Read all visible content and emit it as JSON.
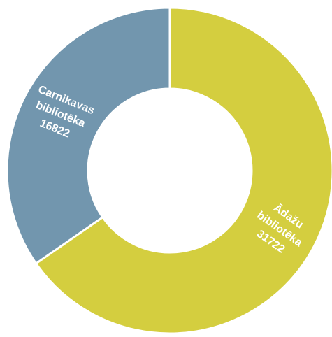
{
  "chart_data": {
    "type": "pie",
    "style": "donut",
    "title": "",
    "slices": [
      {
        "label_lines": [
          "Ādažu",
          "bibliotēka",
          "31722"
        ],
        "value": 31722,
        "color": "#d4ce3f"
      },
      {
        "label_lines": [
          "Carnikavas",
          "bibliotēka",
          "16822"
        ],
        "value": 16822,
        "color": "#7296ae"
      }
    ],
    "start_angle_deg": 0,
    "direction": "clockwise"
  }
}
